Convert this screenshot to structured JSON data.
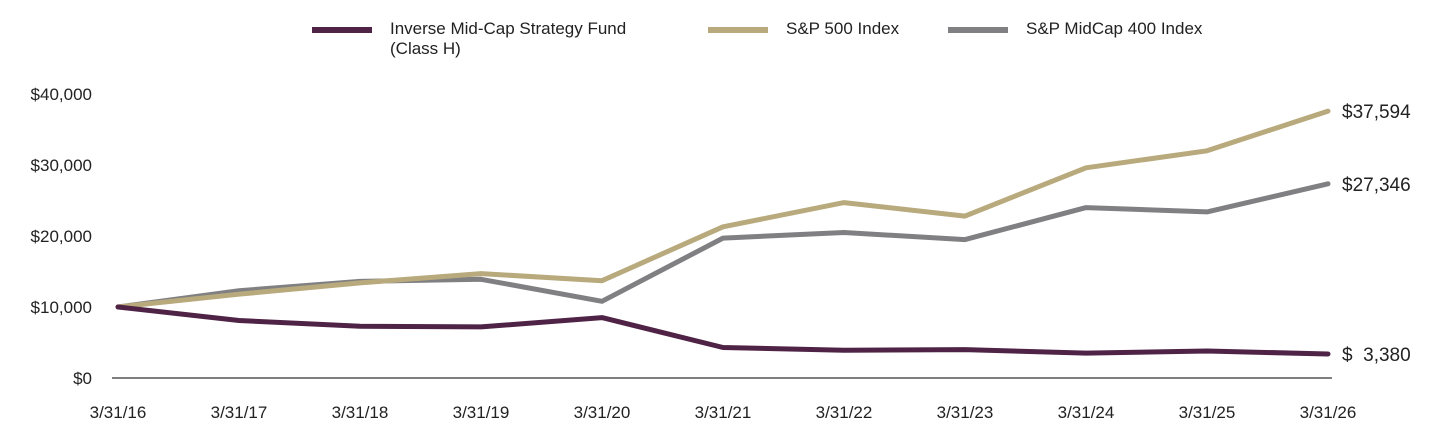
{
  "chart_data": {
    "type": "line",
    "x": [
      "3/31/16",
      "3/31/17",
      "3/31/18",
      "3/31/19",
      "3/31/20",
      "3/31/21",
      "3/31/22",
      "3/31/23",
      "3/31/24",
      "3/31/25",
      "3/31/26"
    ],
    "series": [
      {
        "name": "Inverse Mid-Cap Strategy Fund\n(Class H)",
        "color": "#4f2346",
        "values": [
          10000,
          8100,
          7300,
          7200,
          8500,
          4300,
          3900,
          4000,
          3500,
          3800,
          3380
        ],
        "end_label": "$  3,380"
      },
      {
        "name": "S&P 500 Index",
        "color": "#b8aa7c",
        "values": [
          10000,
          11800,
          13400,
          14700,
          13700,
          21300,
          24700,
          22800,
          29600,
          32000,
          37594
        ],
        "end_label": "$37,594"
      },
      {
        "name": "S&P MidCap 400 Index",
        "color": "#808083",
        "values": [
          10000,
          12300,
          13600,
          13900,
          10800,
          19700,
          20500,
          19500,
          24000,
          23400,
          27346
        ],
        "end_label": "$27,346"
      }
    ],
    "y_ticks": [
      0,
      10000,
      20000,
      30000,
      40000
    ],
    "y_tick_labels": [
      "$0",
      "$10,000",
      "$20,000",
      "$30,000",
      "$40,000"
    ],
    "ylim": [
      0,
      40000
    ],
    "title": "",
    "xlabel": "",
    "ylabel": "",
    "legend": "top",
    "grid": false
  }
}
